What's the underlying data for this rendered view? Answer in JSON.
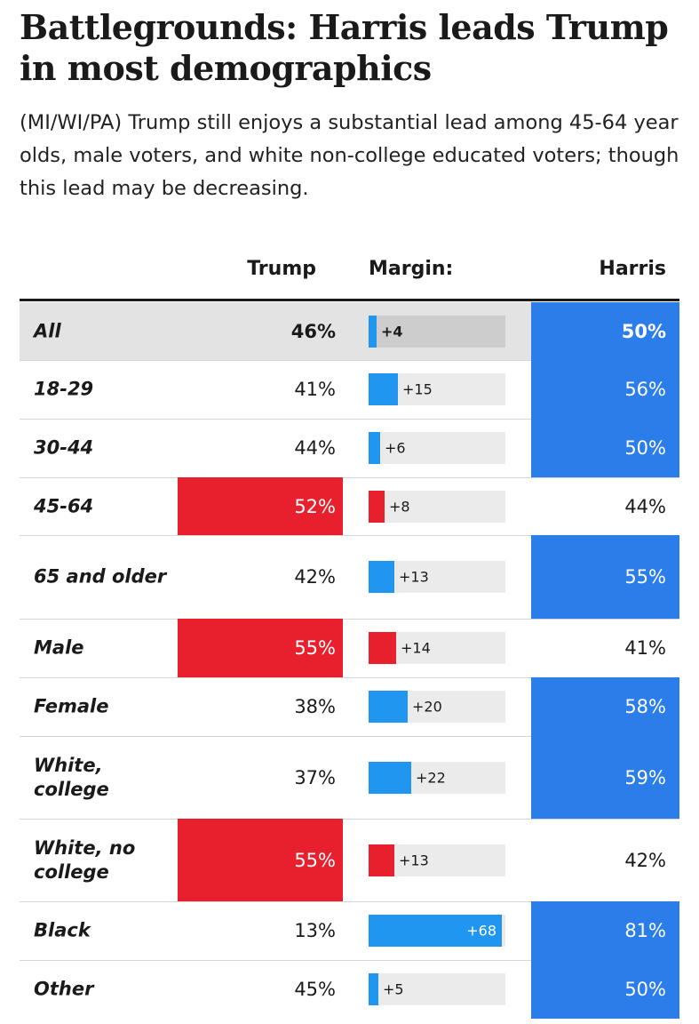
{
  "title": "Battlegrounds: Harris leads Trump in most demographics",
  "subtitle": "(MI/WI/PA) Trump still enjoys a substantial lead among 45-64 year olds, male voters, and white non-college educated voters; though this lead may be decreasing.",
  "headers": {
    "trump": "Trump",
    "margin": "Margin:",
    "harris": "Harris"
  },
  "colors": {
    "trump_lead": "#e8202e",
    "harris_lead": "#2b7de9",
    "margin_harris": "#2196f0",
    "margin_trump": "#e8202e",
    "track": "#ebebeb",
    "highlight_row": "#e3e3e3",
    "highlight_track": "#cdcdcd"
  },
  "chart_data": {
    "type": "table",
    "columns": [
      "Trump",
      "Margin:",
      "Harris"
    ],
    "rows": [
      {
        "label": "All",
        "trump": "46%",
        "harris": "50%",
        "margin_label": "+4",
        "margin": 4,
        "leader": "harris",
        "highlight": true
      },
      {
        "label": "18-29",
        "trump": "41%",
        "harris": "56%",
        "margin_label": "+15",
        "margin": 15,
        "leader": "harris"
      },
      {
        "label": "30-44",
        "trump": "44%",
        "harris": "50%",
        "margin_label": "+6",
        "margin": 6,
        "leader": "harris"
      },
      {
        "label": "45-64",
        "trump": "52%",
        "harris": "44%",
        "margin_label": "+8",
        "margin": 8,
        "leader": "trump"
      },
      {
        "label": "65 and older",
        "trump": "42%",
        "harris": "55%",
        "margin_label": "+13",
        "margin": 13,
        "leader": "harris"
      },
      {
        "label": "Male",
        "trump": "55%",
        "harris": "41%",
        "margin_label": "+14",
        "margin": 14,
        "leader": "trump"
      },
      {
        "label": "Female",
        "trump": "38%",
        "harris": "58%",
        "margin_label": "+20",
        "margin": 20,
        "leader": "harris"
      },
      {
        "label": "White, college",
        "trump": "37%",
        "harris": "59%",
        "margin_label": "+22",
        "margin": 22,
        "leader": "harris"
      },
      {
        "label": "White, no college",
        "trump": "55%",
        "harris": "42%",
        "margin_label": "+13",
        "margin": 13,
        "leader": "trump"
      },
      {
        "label": "Black",
        "trump": "13%",
        "harris": "81%",
        "margin_label": "+68",
        "margin": 68,
        "leader": "harris"
      },
      {
        "label": "Other",
        "trump": "45%",
        "harris": "50%",
        "margin_label": "+5",
        "margin": 5,
        "leader": "harris"
      }
    ]
  }
}
